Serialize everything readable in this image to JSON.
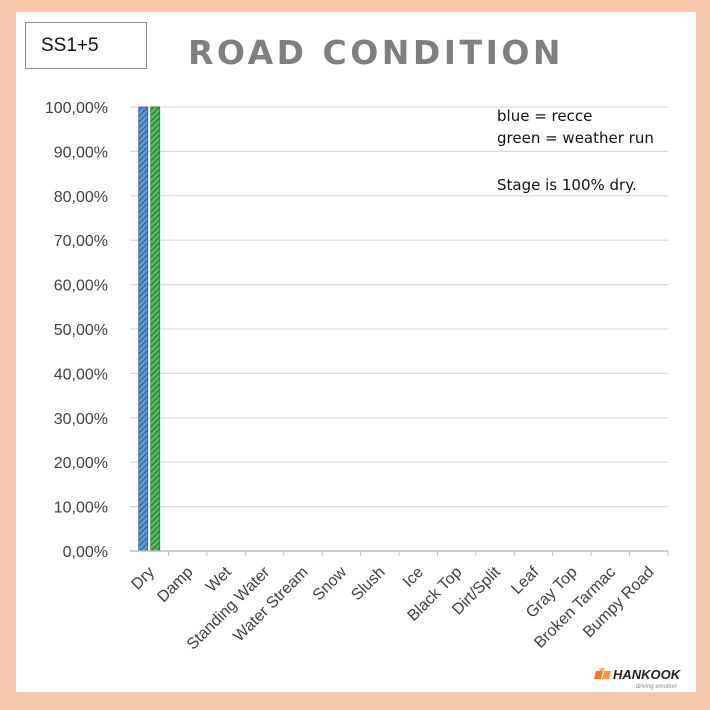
{
  "stage_label": "SS1+5",
  "chart_data": {
    "type": "bar",
    "title": "ROAD CONDITION",
    "categories": [
      "Dry",
      "Damp",
      "Wet",
      "Standing Water",
      "Water Stream",
      "Snow",
      "Slush",
      "Ice",
      "Black Top",
      "Dirt/Split",
      "Leaf",
      "Gray Top",
      "Broken Tarmac",
      "Bumpy Road"
    ],
    "series": [
      {
        "values": [
          100,
          0,
          0,
          0,
          0,
          0,
          0,
          0,
          0,
          0,
          0,
          0,
          0,
          0
        ],
        "color": "#5b9bd5"
      },
      {
        "values": [
          100,
          0,
          0,
          0,
          0,
          0,
          0,
          0,
          0,
          0,
          0,
          0,
          0,
          0
        ],
        "color": "#4caf50"
      }
    ],
    "yticks": [
      "0,00%",
      "10,00%",
      "20,00%",
      "30,00%",
      "40,00%",
      "50,00%",
      "60,00%",
      "70,00%",
      "80,00%",
      "90,00%",
      "100,00%"
    ],
    "ylim": [
      0,
      100
    ],
    "grid": true,
    "annotations": [
      "blue = recce",
      "green = weather run",
      "Stage is 100% dry."
    ]
  },
  "logo": {
    "brand": "HANKOOK",
    "tagline": "driving emotion",
    "color": "#f47920"
  }
}
